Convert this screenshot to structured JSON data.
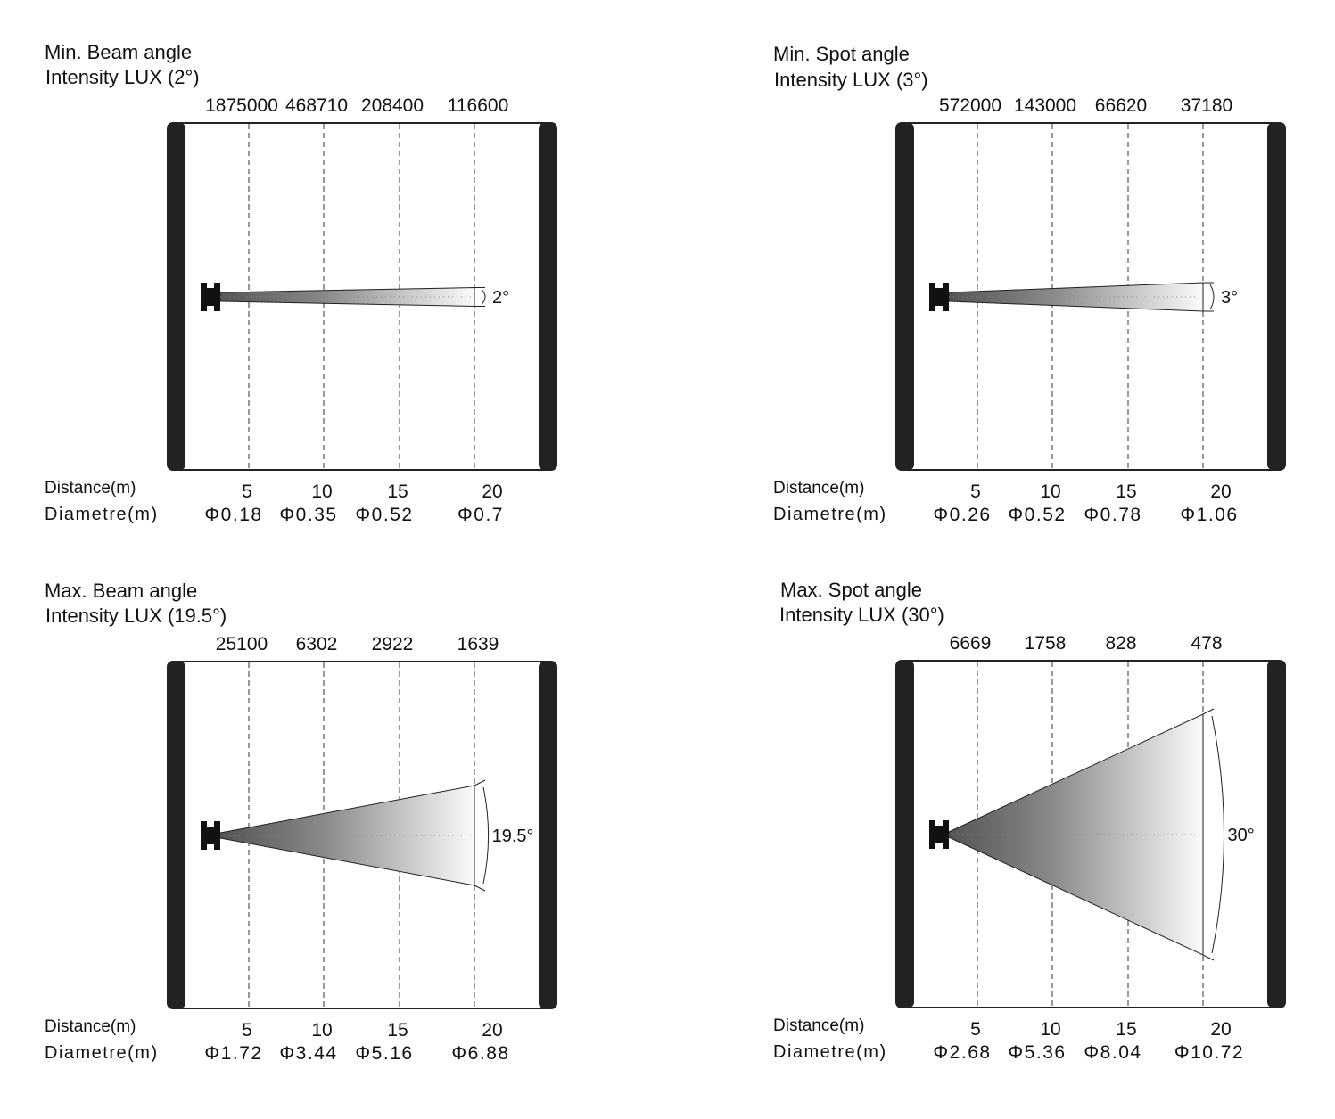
{
  "panels": [
    {
      "title": "Min. Beam angle",
      "subtitle": "Intensity LUX (2°)",
      "angle_label": "2°",
      "angle_deg": 2,
      "lux": [
        "1875000",
        "468710",
        "208400",
        "116600"
      ],
      "distance_label": "Distance(m)",
      "distances": [
        "5",
        "10",
        "15",
        "20"
      ],
      "diameter_label": "Diametre(m)",
      "diameters": [
        "Φ0.18",
        "Φ0.35",
        "Φ0.52",
        "Φ0.7"
      ]
    },
    {
      "title": "Min. Spot angle",
      "subtitle": "Intensity LUX (3°)",
      "angle_label": "3°",
      "angle_deg": 3,
      "lux": [
        "572000",
        "143000",
        "66620",
        "37180"
      ],
      "distance_label": "Distance(m)",
      "distances": [
        "5",
        "10",
        "15",
        "20"
      ],
      "diameter_label": "Diametre(m)",
      "diameters": [
        "Φ0.26",
        "Φ0.52",
        "Φ0.78",
        "Φ1.06"
      ]
    },
    {
      "title": "Max. Beam angle",
      "subtitle": "Intensity LUX (19.5°)",
      "angle_label": "19.5°",
      "angle_deg": 19.5,
      "lux": [
        "25100",
        "6302",
        "2922",
        "1639"
      ],
      "distance_label": "Distance(m)",
      "distances": [
        "5",
        "10",
        "15",
        "20"
      ],
      "diameter_label": "Diametre(m)",
      "diameters": [
        "Φ1.72",
        "Φ3.44",
        "Φ5.16",
        "Φ6.88"
      ]
    },
    {
      "title": "Max. Spot angle",
      "subtitle": "Intensity LUX (30°)",
      "angle_label": "30°",
      "angle_deg": 30,
      "lux": [
        "6669",
        "1758",
        "828",
        "478"
      ],
      "distance_label": "Distance(m)",
      "distances": [
        "5",
        "10",
        "15",
        "20"
      ],
      "diameter_label": "Diametre(m)",
      "diameters": [
        "Φ2.68",
        "Φ5.36",
        "Φ8.04",
        "Φ10.72"
      ]
    }
  ]
}
